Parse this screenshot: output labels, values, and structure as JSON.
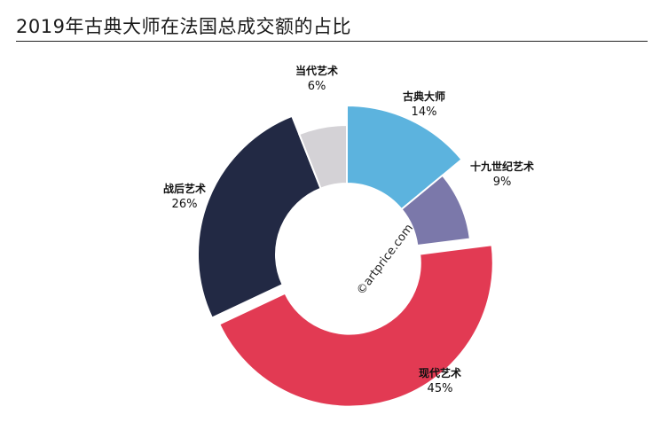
{
  "title": "2019年古典大师在法国总成交额的占比",
  "watermark": "©artprice.com",
  "chart_data": {
    "type": "pie",
    "title": "2019年古典大师在法国总成交额的占比",
    "slices": [
      {
        "label": "古典大师",
        "value": 14,
        "value_label": "14%",
        "color": "#5cb3de"
      },
      {
        "label": "十九世纪艺术",
        "value": 9,
        "value_label": "9%",
        "color": "#7b78aa"
      },
      {
        "label": "现代艺术",
        "value": 45,
        "value_label": "45%",
        "color": "#e23a53"
      },
      {
        "label": "战后艺术",
        "value": 26,
        "value_label": "26%",
        "color": "#222944"
      },
      {
        "label": "当代艺术",
        "value": 6,
        "value_label": "6%",
        "color": "#d4d2d6"
      }
    ],
    "donut": true,
    "legend": "none"
  }
}
